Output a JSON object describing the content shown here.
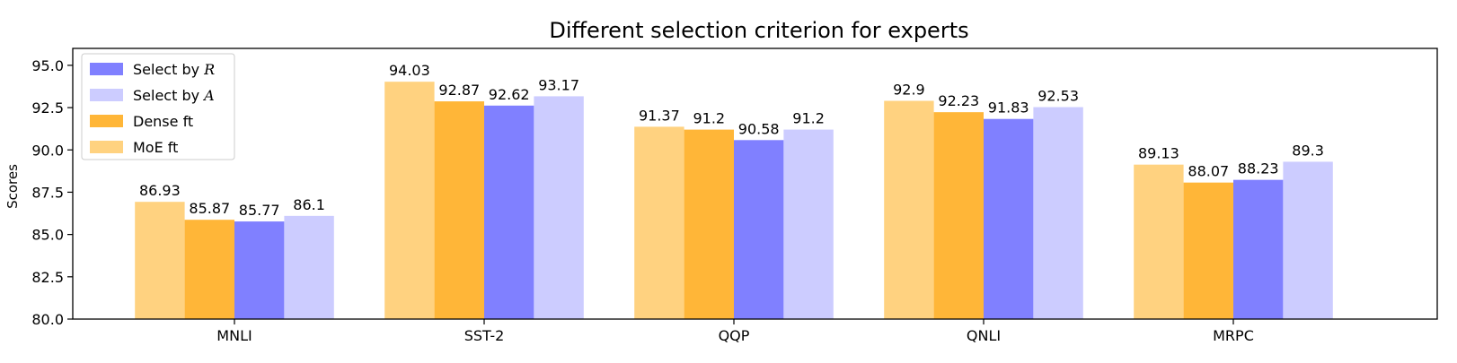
{
  "chart_data": {
    "type": "bar",
    "title": "Different selection criterion for experts",
    "xlabel": "",
    "ylabel": "Scores",
    "ylim": [
      80,
      96
    ],
    "yticks": [
      "80.0",
      "82.5",
      "85.0",
      "87.5",
      "90.0",
      "92.5",
      "95.0"
    ],
    "grid": false,
    "legend_position": "top-left",
    "categories": [
      "MNLI",
      "SST-2",
      "QQP",
      "QNLI",
      "MRPC"
    ],
    "series": [
      {
        "name": "MoE ft",
        "color": "#FFD280",
        "values": [
          86.93,
          94.03,
          91.37,
          92.9,
          89.13
        ],
        "labels": [
          "86.93",
          "94.03",
          "91.37",
          "92.9",
          "89.13"
        ]
      },
      {
        "name": "Dense ft",
        "color": "#FFB638",
        "values": [
          85.87,
          92.87,
          91.2,
          92.23,
          88.07
        ],
        "labels": [
          "85.87",
          "92.87",
          "91.2",
          "92.23",
          "88.07"
        ]
      },
      {
        "name": "Select by R",
        "color": "#8080FF",
        "values": [
          85.77,
          92.62,
          90.58,
          91.83,
          88.23
        ],
        "labels": [
          "85.77",
          "92.62",
          "90.58",
          "91.83",
          "88.23"
        ]
      },
      {
        "name": "Select by A",
        "color": "#CCCCFF",
        "values": [
          86.1,
          93.17,
          91.2,
          92.53,
          89.3
        ],
        "labels": [
          "86.1",
          "93.17",
          "91.2",
          "92.53",
          "89.3"
        ]
      }
    ],
    "legend": [
      {
        "prefix": "Select by ",
        "symbol": "R",
        "color": "#8080FF"
      },
      {
        "prefix": "Select by ",
        "symbol": "A",
        "color": "#CCCCFF"
      },
      {
        "prefix": "Dense ft",
        "symbol": "",
        "color": "#FFB638"
      },
      {
        "prefix": "MoE ft",
        "symbol": "",
        "color": "#FFD280"
      }
    ]
  }
}
